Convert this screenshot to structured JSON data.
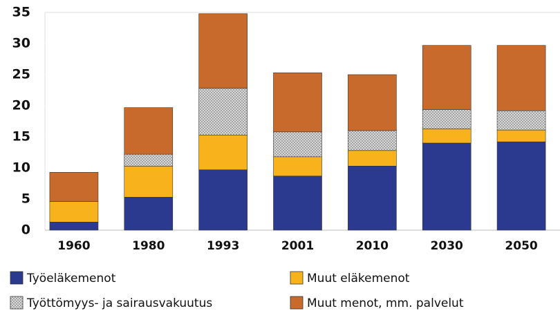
{
  "chart_data": {
    "type": "stacked-bar",
    "categories": [
      "1960",
      "1980",
      "1993",
      "2001",
      "2010",
      "2030",
      "2050"
    ],
    "series": [
      {
        "name": "Työeläkemenot",
        "color": "#2b3a8e",
        "values": [
          1.3,
          5.3,
          9.7,
          8.7,
          10.3,
          14.0,
          14.2
        ]
      },
      {
        "name": "Muut eläkemenot",
        "color": "#f8b31c",
        "values": [
          3.3,
          5.0,
          5.6,
          3.1,
          2.5,
          2.3,
          1.9
        ]
      },
      {
        "name": "Työttömyys- ja sairausvakuutus",
        "color": "#cfcfcf",
        "values": [
          0,
          1.9,
          7.5,
          4.0,
          3.2,
          3.1,
          3.1
        ]
      },
      {
        "name": "Muut menot, mm. palvelut",
        "color": "#c86a2c",
        "values": [
          4.7,
          7.5,
          12.0,
          9.5,
          9.0,
          10.3,
          10.5
        ]
      }
    ],
    "ylim": [
      0,
      35
    ],
    "yticks": [
      0,
      5,
      10,
      15,
      20,
      25,
      30,
      35
    ],
    "legend": "bottom"
  }
}
